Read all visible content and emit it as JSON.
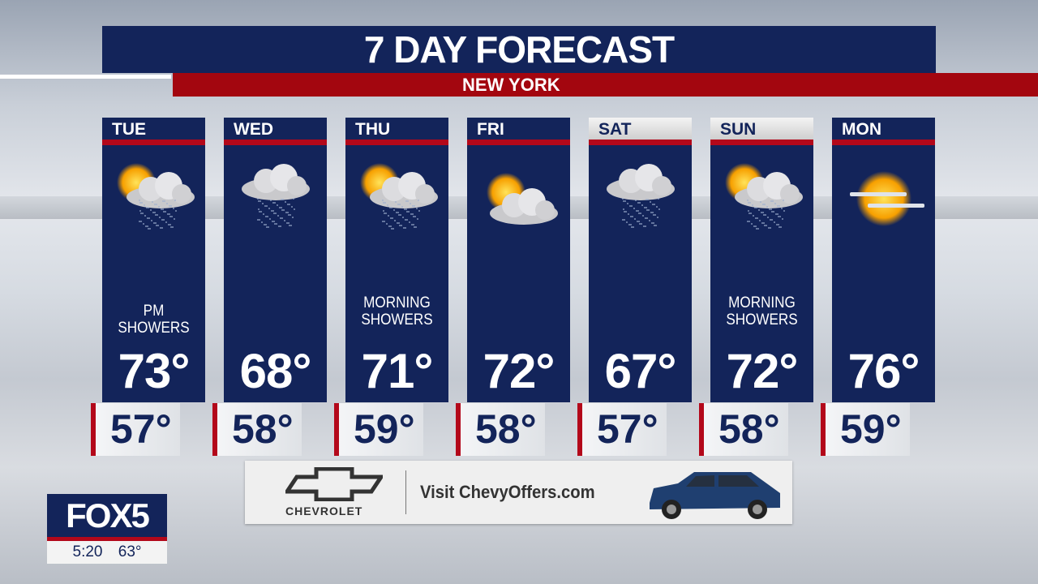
{
  "title": "7 DAY FORECAST",
  "location": "NEW YORK",
  "colors": {
    "navy": "#13245a",
    "red": "#b3081a"
  },
  "days": [
    {
      "day": "TUE",
      "icon": "sun-cloud-rain-icon",
      "desc": "PM SHOWERS",
      "high": "73°",
      "low": "57°",
      "weekend": false
    },
    {
      "day": "WED",
      "icon": "cloud-rain-icon",
      "desc": "",
      "high": "68°",
      "low": "58°",
      "weekend": false
    },
    {
      "day": "THU",
      "icon": "sun-cloud-rain-icon",
      "desc": "MORNING SHOWERS",
      "high": "71°",
      "low": "59°",
      "weekend": false
    },
    {
      "day": "FRI",
      "icon": "sun-cloud-icon",
      "desc": "",
      "high": "72°",
      "low": "58°",
      "weekend": false
    },
    {
      "day": "SAT",
      "icon": "cloud-rain-icon",
      "desc": "",
      "high": "67°",
      "low": "57°",
      "weekend": true
    },
    {
      "day": "SUN",
      "icon": "sun-cloud-rain-icon",
      "desc": "MORNING SHOWERS",
      "high": "72°",
      "low": "58°",
      "weekend": true
    },
    {
      "day": "MON",
      "icon": "hazy-sun-icon",
      "desc": "",
      "high": "76°",
      "low": "59°",
      "weekend": false
    }
  ],
  "ad": {
    "brand": "CHEVROLET",
    "text": "Visit ChevyOffers.com"
  },
  "station": {
    "logo": "FOX5",
    "time": "5:20",
    "temp": "63°"
  }
}
